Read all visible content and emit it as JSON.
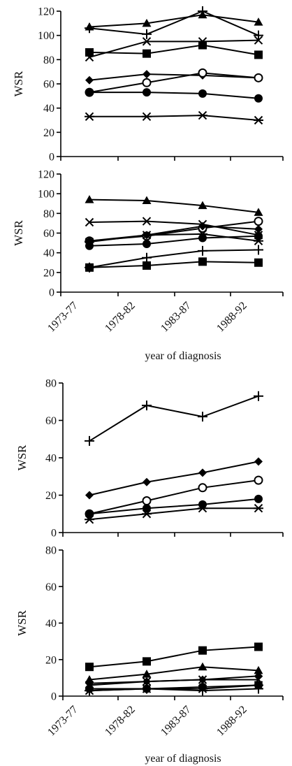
{
  "chart_data": [
    {
      "type": "line",
      "ylabel": "WSR",
      "ylim": [
        0,
        120
      ],
      "yticks": [
        0,
        20,
        40,
        60,
        80,
        100,
        120
      ],
      "categories": [
        "1973-77",
        "1978-82",
        "1983-87",
        "1988-92"
      ],
      "grid": false,
      "series": [
        {
          "marker": "triangle",
          "values": [
            107,
            110,
            117,
            111
          ]
        },
        {
          "marker": "plus",
          "values": [
            106,
            101,
            120,
            100
          ]
        },
        {
          "marker": "x",
          "values": [
            82,
            95,
            95,
            96
          ]
        },
        {
          "marker": "square",
          "values": [
            86,
            85,
            92,
            84
          ]
        },
        {
          "marker": "diamond",
          "values": [
            63,
            68,
            67,
            65
          ]
        },
        {
          "marker": "circle-open",
          "values": [
            53,
            61,
            69,
            65
          ]
        },
        {
          "marker": "circle",
          "values": [
            53,
            53,
            52,
            48
          ]
        },
        {
          "marker": "asterisk",
          "values": [
            33,
            33,
            34,
            30
          ]
        }
      ]
    },
    {
      "type": "line",
      "ylabel": "WSR",
      "ylim": [
        0,
        120
      ],
      "yticks": [
        0,
        20,
        40,
        60,
        80,
        100,
        120
      ],
      "categories": [
        "1973-77",
        "1978-82",
        "1983-87",
        "1988-92"
      ],
      "xlabel": "year of diagnosis",
      "grid": false,
      "series": [
        {
          "marker": "triangle",
          "values": [
            94,
            93,
            88,
            81
          ]
        },
        {
          "marker": "x",
          "values": [
            71,
            72,
            69,
            58
          ]
        },
        {
          "marker": "circle-open",
          "values": [
            52,
            57,
            65,
            72
          ]
        },
        {
          "marker": "diamond",
          "values": [
            52,
            58,
            67,
            64
          ]
        },
        {
          "marker": "asterisk",
          "values": [
            51,
            58,
            59,
            52
          ]
        },
        {
          "marker": "circle",
          "values": [
            47,
            49,
            55,
            57
          ]
        },
        {
          "marker": "plus",
          "values": [
            25,
            35,
            42,
            43
          ]
        },
        {
          "marker": "square",
          "values": [
            25,
            27,
            31,
            30
          ]
        }
      ]
    },
    {
      "type": "line",
      "ylabel": "WSR",
      "ylim": [
        0,
        80
      ],
      "yticks": [
        0,
        20,
        40,
        60,
        80
      ],
      "categories": [
        "1973-77",
        "1978-82",
        "1983-87",
        "1988-92"
      ],
      "grid": false,
      "series": [
        {
          "marker": "plus",
          "values": [
            49,
            68,
            62,
            73
          ]
        },
        {
          "marker": "diamond",
          "values": [
            20,
            27,
            32,
            38
          ]
        },
        {
          "marker": "circle-open",
          "values": [
            10,
            17,
            24,
            28
          ]
        },
        {
          "marker": "circle",
          "values": [
            10,
            13,
            15,
            18
          ]
        },
        {
          "marker": "asterisk",
          "values": [
            7,
            10,
            13,
            13
          ]
        }
      ]
    },
    {
      "type": "line",
      "ylabel": "WSR",
      "ylim": [
        0,
        80
      ],
      "yticks": [
        0,
        20,
        40,
        60,
        80
      ],
      "categories": [
        "1973-77",
        "1978-82",
        "1983-87",
        "1988-92"
      ],
      "xlabel": "year of diagnosis",
      "grid": false,
      "series": [
        {
          "marker": "square",
          "values": [
            16,
            19,
            25,
            27
          ]
        },
        {
          "marker": "triangle",
          "values": [
            9,
            12,
            16,
            14
          ]
        },
        {
          "marker": "diamond",
          "values": [
            7,
            8,
            9,
            11
          ]
        },
        {
          "marker": "x",
          "values": [
            6,
            8,
            9,
            9
          ]
        },
        {
          "marker": "circle",
          "values": [
            4,
            4,
            5,
            6
          ]
        },
        {
          "marker": "asterisk",
          "values": [
            3,
            4,
            4,
            6
          ]
        },
        {
          "marker": "plus",
          "values": [
            3,
            4,
            3,
            4
          ]
        }
      ]
    }
  ]
}
